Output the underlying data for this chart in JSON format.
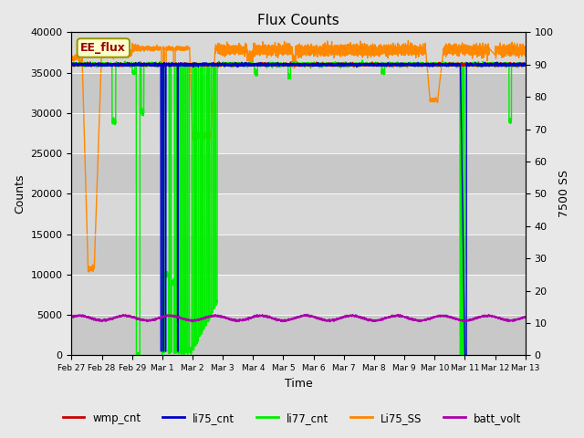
{
  "title": "Flux Counts",
  "xlabel": "Time",
  "ylabel_left": "Counts",
  "ylabel_right": "7500 SS",
  "ylim_left": [
    0,
    40000
  ],
  "ylim_right": [
    0,
    100
  ],
  "x_ticks": [
    "Feb 27",
    "Feb 28",
    "Feb 29",
    "Mar 1",
    "Mar 2",
    "Mar 3",
    "Mar 4",
    "Mar 5",
    "Mar 6",
    "Mar 7",
    "Mar 8",
    "Mar 9",
    "Mar 10",
    "Mar 11",
    "Mar 12",
    "Mar 13"
  ],
  "annotation_text": "EE_flux",
  "bg_color": "#e8e8e8",
  "plot_bg_color": "#d0d0d0",
  "series": {
    "wmp_cnt": {
      "color": "#cc0000",
      "lw": 1.0
    },
    "li75_cnt": {
      "color": "#0000cc",
      "lw": 1.0
    },
    "li77_cnt": {
      "color": "#00ee00",
      "lw": 1.0
    },
    "Li75_SS": {
      "color": "#ff8800",
      "lw": 1.0
    },
    "batt_volt": {
      "color": "#aa00aa",
      "lw": 1.0
    }
  },
  "legend_labels": [
    "wmp_cnt",
    "li75_cnt",
    "li77_cnt",
    "Li75_SS",
    "batt_volt"
  ],
  "legend_colors": [
    "#cc0000",
    "#0000cc",
    "#00ee00",
    "#ff8800",
    "#aa00aa"
  ]
}
